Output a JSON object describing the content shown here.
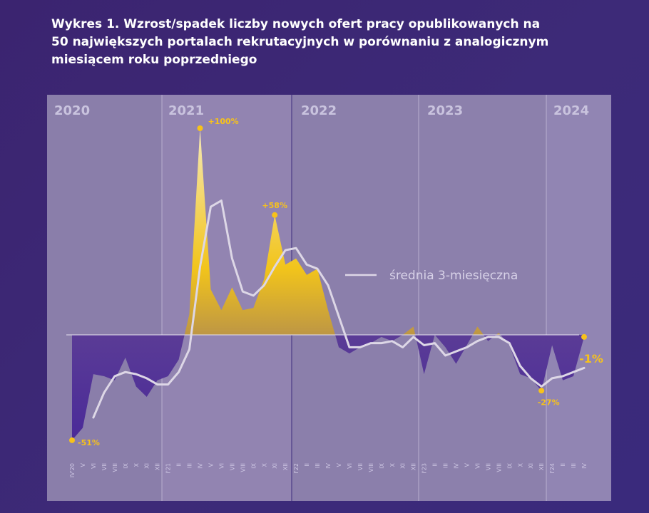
{
  "chart_data": {
    "type": "area",
    "title": "Wykres 1. Wzrost/spadek liczby nowych ofert pracy opublikowanych na\n50 największych portalach rekrutacyjnych w porównaniu z analogicznym\nmiesiącem roku poprzedniego",
    "unit": "%",
    "years": [
      "2020",
      "2021",
      "2022",
      "2023",
      "2024"
    ],
    "months": [
      "IV'20",
      "V",
      "VI",
      "VII",
      "VIII",
      "IX",
      "X",
      "XI",
      "XII",
      "I'21",
      "II",
      "III",
      "IV",
      "V",
      "VI",
      "VII",
      "VIII",
      "IX",
      "X",
      "XI",
      "XII",
      "I'22",
      "II",
      "III",
      "IV",
      "V",
      "VI",
      "VII",
      "VIII",
      "IX",
      "X",
      "XI",
      "XII",
      "I'23",
      "II",
      "III",
      "IV",
      "V",
      "VI",
      "VII",
      "VIII",
      "IX",
      "X",
      "XI",
      "XII",
      "I'24",
      "II",
      "III",
      "IV"
    ],
    "series": [
      {
        "key": "monthly",
        "values": [
          -51,
          -45,
          -19,
          -20,
          -22,
          -11,
          -25,
          -30,
          -22,
          -20,
          -12,
          10,
          100,
          22,
          12,
          23,
          12,
          13,
          27,
          58,
          34,
          37,
          29,
          32,
          12,
          -6,
          -9,
          -6,
          -4,
          -1,
          -3,
          0,
          4,
          -19,
          0,
          -6,
          -14,
          -5,
          4,
          -3,
          1,
          -5,
          -19,
          -21,
          -27,
          -5,
          -22,
          -20,
          -1
        ]
      },
      {
        "name": "średnia 3-miesięczna",
        "key": "avg3",
        "values": [
          null,
          null,
          -40,
          -28,
          -20,
          -18,
          -19,
          -21,
          -24,
          -24,
          -18,
          -7,
          33,
          62,
          65,
          37,
          21,
          19,
          24,
          33,
          41,
          42,
          34,
          32,
          24,
          9,
          -6,
          -6,
          -4,
          -4,
          -3,
          -6,
          -1,
          -5,
          -4,
          -10,
          -8,
          -6,
          -3,
          -1,
          -1,
          -4,
          -15,
          -21,
          -25,
          -21,
          -20,
          -18,
          -16
        ]
      }
    ],
    "annotations": [
      {
        "label": "+100%",
        "month": "IV",
        "value": 100
      },
      {
        "label": "+58%",
        "month": "XI",
        "value": 58
      },
      {
        "label": "-51%",
        "month": "IV'20",
        "value": -51
      },
      {
        "label": "-27%",
        "month": "XII",
        "value": -27
      },
      {
        "label": "-1%",
        "month": "IV",
        "value": -1
      }
    ],
    "legend": {
      "label": "średnia 3-miesięczna",
      "placement": "right"
    },
    "ylim": [
      -60,
      110
    ],
    "grid": false
  }
}
